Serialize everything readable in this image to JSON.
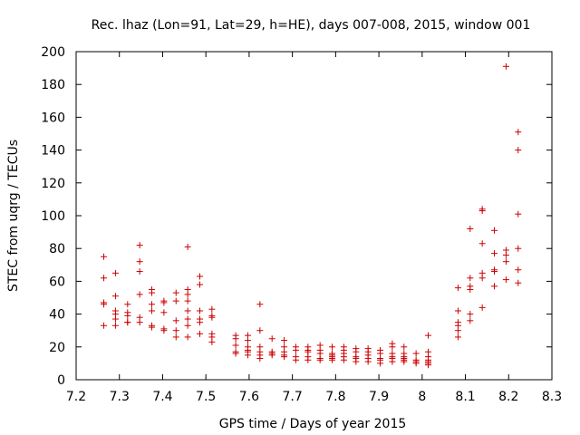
{
  "chart_data": {
    "type": "scatter",
    "title": "Rec. lhaz (Lon=91, Lat=29, h=HE), days 007-008, 2015, window 001",
    "xlabel": "GPS time / Days of year 2015",
    "ylabel": "STEC from uqrg / TECUs",
    "xlim": [
      7.2,
      8.3
    ],
    "ylim": [
      0,
      200
    ],
    "xticks": [
      "7.2",
      "7.3",
      "7.4",
      "7.5",
      "7.6",
      "7.7",
      "7.8",
      "7.9",
      "8",
      "8.1",
      "8.2",
      "8.3"
    ],
    "yticks": [
      "0",
      "20",
      "40",
      "60",
      "80",
      "100",
      "120",
      "140",
      "160",
      "180",
      "200"
    ],
    "marker": "+",
    "color": "#cc0000",
    "points": [
      [
        7.264,
        75
      ],
      [
        7.264,
        62
      ],
      [
        7.264,
        47
      ],
      [
        7.264,
        46
      ],
      [
        7.264,
        33
      ],
      [
        7.291,
        65
      ],
      [
        7.291,
        51
      ],
      [
        7.291,
        42
      ],
      [
        7.291,
        40
      ],
      [
        7.291,
        37
      ],
      [
        7.291,
        33
      ],
      [
        7.319,
        46
      ],
      [
        7.319,
        41
      ],
      [
        7.319,
        39
      ],
      [
        7.319,
        35
      ],
      [
        7.319,
        35
      ],
      [
        7.347,
        82
      ],
      [
        7.347,
        72
      ],
      [
        7.347,
        66
      ],
      [
        7.347,
        52
      ],
      [
        7.347,
        38
      ],
      [
        7.347,
        35
      ],
      [
        7.375,
        55
      ],
      [
        7.375,
        53
      ],
      [
        7.375,
        46
      ],
      [
        7.375,
        42
      ],
      [
        7.375,
        33
      ],
      [
        7.375,
        32
      ],
      [
        7.403,
        48
      ],
      [
        7.403,
        47
      ],
      [
        7.403,
        41
      ],
      [
        7.403,
        31
      ],
      [
        7.403,
        30
      ],
      [
        7.431,
        53
      ],
      [
        7.431,
        48
      ],
      [
        7.431,
        36
      ],
      [
        7.431,
        30
      ],
      [
        7.431,
        26
      ],
      [
        7.458,
        81
      ],
      [
        7.458,
        55
      ],
      [
        7.458,
        52
      ],
      [
        7.458,
        48
      ],
      [
        7.458,
        42
      ],
      [
        7.458,
        37
      ],
      [
        7.458,
        33
      ],
      [
        7.458,
        26
      ],
      [
        7.486,
        63
      ],
      [
        7.486,
        58
      ],
      [
        7.486,
        42
      ],
      [
        7.486,
        37
      ],
      [
        7.486,
        35
      ],
      [
        7.486,
        28
      ],
      [
        7.514,
        43
      ],
      [
        7.514,
        39
      ],
      [
        7.514,
        38
      ],
      [
        7.514,
        28
      ],
      [
        7.514,
        26
      ],
      [
        7.514,
        23
      ],
      [
        7.569,
        27
      ],
      [
        7.569,
        25
      ],
      [
        7.569,
        21
      ],
      [
        7.569,
        17
      ],
      [
        7.569,
        16
      ],
      [
        7.597,
        27
      ],
      [
        7.597,
        24
      ],
      [
        7.597,
        20
      ],
      [
        7.597,
        18
      ],
      [
        7.597,
        17
      ],
      [
        7.597,
        15
      ],
      [
        7.625,
        46
      ],
      [
        7.625,
        30
      ],
      [
        7.625,
        20
      ],
      [
        7.625,
        17
      ],
      [
        7.625,
        15
      ],
      [
        7.625,
        13
      ],
      [
        7.653,
        25
      ],
      [
        7.653,
        17
      ],
      [
        7.653,
        16
      ],
      [
        7.653,
        15
      ],
      [
        7.681,
        24
      ],
      [
        7.681,
        20
      ],
      [
        7.681,
        17
      ],
      [
        7.681,
        15
      ],
      [
        7.681,
        14
      ],
      [
        7.708,
        20
      ],
      [
        7.708,
        18
      ],
      [
        7.708,
        14
      ],
      [
        7.708,
        12
      ],
      [
        7.736,
        20
      ],
      [
        7.736,
        18
      ],
      [
        7.736,
        17
      ],
      [
        7.736,
        14
      ],
      [
        7.736,
        12
      ],
      [
        7.764,
        21
      ],
      [
        7.764,
        18
      ],
      [
        7.764,
        16
      ],
      [
        7.764,
        13
      ],
      [
        7.764,
        12
      ],
      [
        7.792,
        20
      ],
      [
        7.792,
        16
      ],
      [
        7.792,
        15
      ],
      [
        7.792,
        14
      ],
      [
        7.792,
        13
      ],
      [
        7.792,
        12
      ],
      [
        7.819,
        20
      ],
      [
        7.819,
        18
      ],
      [
        7.819,
        16
      ],
      [
        7.819,
        14
      ],
      [
        7.819,
        12
      ],
      [
        7.847,
        19
      ],
      [
        7.847,
        17
      ],
      [
        7.847,
        14
      ],
      [
        7.847,
        13
      ],
      [
        7.847,
        11
      ],
      [
        7.875,
        19
      ],
      [
        7.875,
        17
      ],
      [
        7.875,
        15
      ],
      [
        7.875,
        13
      ],
      [
        7.875,
        11
      ],
      [
        7.903,
        18
      ],
      [
        7.903,
        16
      ],
      [
        7.903,
        13
      ],
      [
        7.903,
        12
      ],
      [
        7.903,
        10
      ],
      [
        7.931,
        22
      ],
      [
        7.931,
        20
      ],
      [
        7.931,
        16
      ],
      [
        7.931,
        14
      ],
      [
        7.931,
        13
      ],
      [
        7.931,
        11
      ],
      [
        7.958,
        20
      ],
      [
        7.958,
        16
      ],
      [
        7.958,
        14
      ],
      [
        7.958,
        13
      ],
      [
        7.958,
        12
      ],
      [
        7.958,
        11
      ],
      [
        7.986,
        16
      ],
      [
        7.986,
        12
      ],
      [
        7.986,
        11
      ],
      [
        7.986,
        10
      ],
      [
        8.014,
        27
      ],
      [
        8.014,
        17
      ],
      [
        8.014,
        14
      ],
      [
        8.014,
        12
      ],
      [
        8.014,
        11
      ],
      [
        8.014,
        10
      ],
      [
        8.014,
        9
      ],
      [
        8.083,
        56
      ],
      [
        8.083,
        42
      ],
      [
        8.083,
        35
      ],
      [
        8.083,
        33
      ],
      [
        8.083,
        30
      ],
      [
        8.083,
        26
      ],
      [
        8.111,
        92
      ],
      [
        8.111,
        62
      ],
      [
        8.111,
        57
      ],
      [
        8.111,
        55
      ],
      [
        8.111,
        40
      ],
      [
        8.111,
        36
      ],
      [
        8.139,
        104
      ],
      [
        8.139,
        103
      ],
      [
        8.139,
        83
      ],
      [
        8.139,
        65
      ],
      [
        8.139,
        62
      ],
      [
        8.139,
        44
      ],
      [
        8.167,
        91
      ],
      [
        8.167,
        77
      ],
      [
        8.167,
        67
      ],
      [
        8.167,
        66
      ],
      [
        8.167,
        57
      ],
      [
        8.194,
        191
      ],
      [
        8.194,
        79
      ],
      [
        8.194,
        76
      ],
      [
        8.194,
        72
      ],
      [
        8.194,
        61
      ],
      [
        8.222,
        151
      ],
      [
        8.222,
        140
      ],
      [
        8.222,
        101
      ],
      [
        8.222,
        80
      ],
      [
        8.222,
        67
      ],
      [
        8.222,
        59
      ]
    ]
  }
}
